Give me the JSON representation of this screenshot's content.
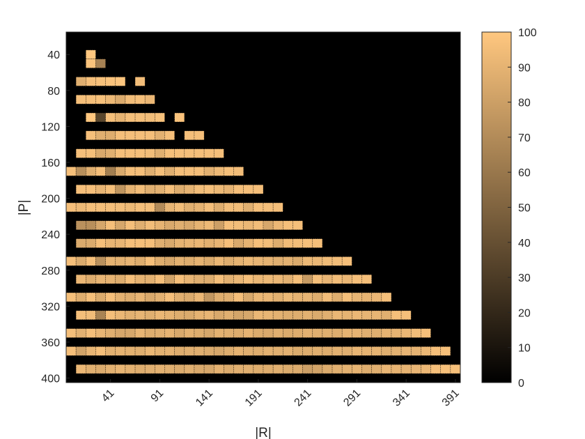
{
  "chart_data": {
    "type": "heatmap",
    "title": "",
    "xlabel": "|R|",
    "ylabel": "|P|",
    "x_start": 1,
    "x_step": 10,
    "x_count": 40,
    "x_ticks": [
      41,
      91,
      141,
      191,
      241,
      291,
      341,
      391
    ],
    "y_start": 20,
    "y_step": 10,
    "y_count": 39,
    "y_ticks": [
      40,
      80,
      120,
      160,
      200,
      240,
      280,
      320,
      360,
      400
    ],
    "y_direction": "top-to-bottom increasing",
    "colormap": "copper",
    "colormap_stops": [
      "#000000",
      "#ffc77f"
    ],
    "clim": [
      0,
      100
    ],
    "colorbar_ticks": [
      0,
      10,
      20,
      30,
      40,
      50,
      60,
      70,
      80,
      90,
      100
    ],
    "background_color": "#000000",
    "grid": true,
    "rows": [
      [],
      [],
      [
        null,
        null,
        100
      ],
      [
        null,
        null,
        98,
        65
      ],
      [],
      [
        null,
        88,
        96,
        97,
        98,
        99,
        null,
        95
      ],
      [],
      [
        null,
        96,
        96,
        97,
        93,
        86,
        95,
        96,
        92
      ],
      [],
      [
        null,
        null,
        100,
        35,
        96,
        90,
        96,
        96,
        95,
        97,
        null,
        98
      ],
      [],
      [
        null,
        null,
        96,
        88,
        87,
        96,
        96,
        96,
        96,
        89,
        96,
        null,
        96,
        96
      ],
      [],
      [
        null,
        96,
        96,
        85,
        88,
        96,
        96,
        96,
        95,
        88,
        96,
        96,
        96,
        96,
        96,
        96
      ],
      [],
      [
        96,
        72,
        88,
        96,
        64,
        86,
        96,
        96,
        88,
        96,
        88,
        96,
        96,
        96,
        89,
        93,
        96,
        95
      ],
      [],
      [
        null,
        96,
        96,
        91,
        96,
        75,
        90,
        95,
        88,
        89,
        96,
        87,
        90,
        95,
        96,
        93,
        90,
        96,
        96,
        96
      ],
      [],
      [
        96,
        93,
        96,
        96,
        96,
        95,
        93,
        96,
        96,
        70,
        91,
        95,
        88,
        90,
        96,
        87,
        95,
        95,
        88,
        96,
        96,
        96
      ],
      [],
      [
        null,
        73,
        72,
        84,
        96,
        84,
        96,
        88,
        95,
        90,
        85,
        88,
        85,
        90,
        93,
        80,
        96,
        95,
        92,
        95,
        84,
        92,
        96,
        96
      ],
      [],
      [
        null,
        86,
        86,
        96,
        91,
        91,
        96,
        96,
        96,
        88,
        85,
        90,
        91,
        92,
        89,
        91,
        96,
        85,
        90,
        96,
        95,
        87,
        94,
        95,
        96,
        96
      ],
      [],
      [
        96,
        86,
        96,
        73,
        90,
        89,
        91,
        87,
        96,
        87,
        84,
        89,
        87,
        90,
        86,
        92,
        87,
        90,
        93,
        91,
        90,
        88,
        89,
        86,
        93,
        92,
        94,
        95,
        96
      ],
      [],
      [
        null,
        92,
        87,
        91,
        90,
        87,
        96,
        90,
        89,
        96,
        82,
        96,
        91,
        88,
        87,
        96,
        89,
        92,
        96,
        92,
        93,
        92,
        89,
        96,
        78,
        96,
        91,
        95,
        92,
        96,
        96
      ],
      [],
      [
        96,
        87,
        96,
        86,
        96,
        89,
        87,
        91,
        85,
        89,
        96,
        88,
        86,
        92,
        76,
        87,
        88,
        96,
        85,
        92,
        92,
        89,
        93,
        90,
        91,
        87,
        95,
        87,
        96,
        91,
        90,
        92,
        96
      ],
      [],
      [
        null,
        96,
        95,
        66,
        96,
        92,
        89,
        91,
        88,
        92,
        90,
        87,
        86,
        90,
        91,
        85,
        88,
        83,
        84,
        92,
        91,
        89,
        87,
        87,
        89,
        86,
        88,
        92,
        90,
        92,
        91,
        91,
        88,
        96,
        96
      ],
      [],
      [
        96,
        89,
        96,
        91,
        88,
        84,
        84,
        91,
        87,
        88,
        90,
        85,
        89,
        87,
        84,
        89,
        88,
        87,
        90,
        86,
        85,
        88,
        86,
        87,
        89,
        88,
        88,
        87,
        90,
        90,
        88,
        88,
        90,
        90,
        92,
        95,
        96
      ],
      [],
      [
        96,
        82,
        91,
        96,
        89,
        90,
        89,
        88,
        92,
        89,
        90,
        87,
        88,
        88,
        86,
        84,
        87,
        90,
        88,
        87,
        89,
        88,
        89,
        86,
        87,
        88,
        87,
        89,
        88,
        91,
        90,
        90,
        88,
        89,
        91,
        90,
        92,
        96,
        96
      ],
      [],
      [
        null,
        92,
        88,
        86,
        89,
        91,
        89,
        87,
        88,
        89,
        88,
        86,
        88,
        85,
        84,
        89,
        86,
        88,
        88,
        87,
        87,
        88,
        86,
        86,
        80,
        82,
        86,
        88,
        89,
        90,
        87,
        88,
        91,
        90,
        90,
        91,
        92,
        96,
        96,
        96
      ]
    ]
  }
}
